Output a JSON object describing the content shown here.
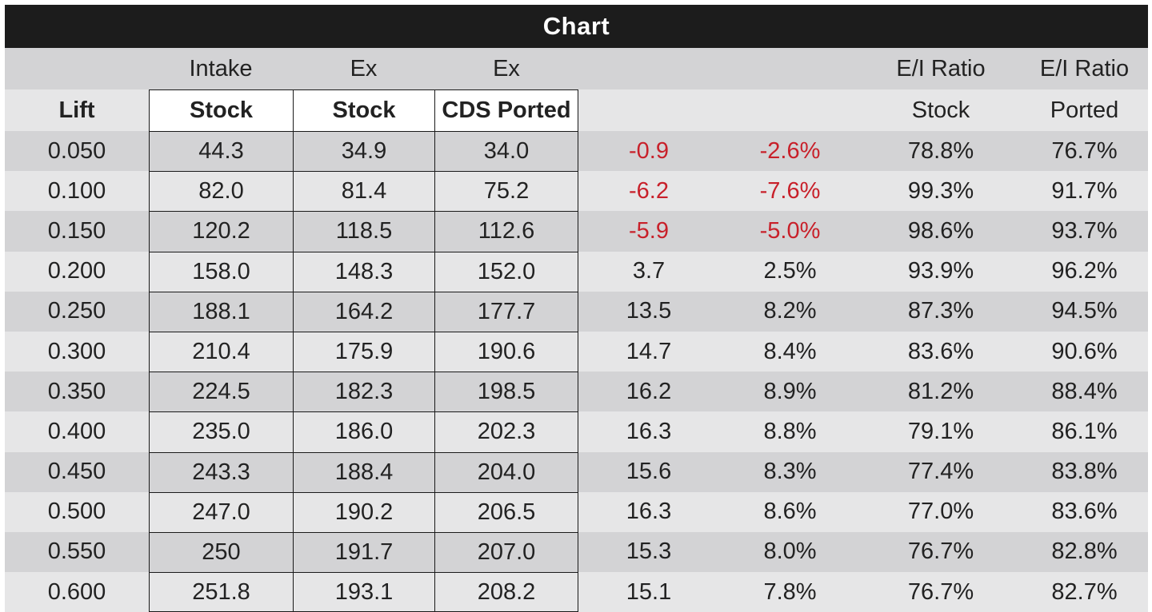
{
  "chart_data": {
    "type": "table",
    "title": "Chart",
    "header_row1": [
      "",
      "Intake",
      "Ex",
      "Ex",
      "",
      "",
      "E/I Ratio",
      "E/I Ratio"
    ],
    "header_row2": [
      "Lift",
      "Stock",
      "Stock",
      "CDS Ported",
      "",
      "",
      "Stock",
      "Ported"
    ],
    "rows": [
      [
        "0.050",
        "44.3",
        "34.9",
        "34.0",
        "-0.9",
        "-2.6%",
        "78.8%",
        "76.7%"
      ],
      [
        "0.100",
        "82.0",
        "81.4",
        "75.2",
        "-6.2",
        "-7.6%",
        "99.3%",
        "91.7%"
      ],
      [
        "0.150",
        "120.2",
        "118.5",
        "112.6",
        "-5.9",
        "-5.0%",
        "98.6%",
        "93.7%"
      ],
      [
        "0.200",
        "158.0",
        "148.3",
        "152.0",
        "3.7",
        "2.5%",
        "93.9%",
        "96.2%"
      ],
      [
        "0.250",
        "188.1",
        "164.2",
        "177.7",
        "13.5",
        "8.2%",
        "87.3%",
        "94.5%"
      ],
      [
        "0.300",
        "210.4",
        "175.9",
        "190.6",
        "14.7",
        "8.4%",
        "83.6%",
        "90.6%"
      ],
      [
        "0.350",
        "224.5",
        "182.3",
        "198.5",
        "16.2",
        "8.9%",
        "81.2%",
        "88.4%"
      ],
      [
        "0.400",
        "235.0",
        "186.0",
        "202.3",
        "16.3",
        "8.8%",
        "79.1%",
        "86.1%"
      ],
      [
        "0.450",
        "243.3",
        "188.4",
        "204.0",
        "15.6",
        "8.3%",
        "77.4%",
        "83.8%"
      ],
      [
        "0.500",
        "247.0",
        "190.2",
        "206.5",
        "16.3",
        "8.6%",
        "77.0%",
        "83.6%"
      ],
      [
        "0.550",
        "250",
        "191.7",
        "207.0",
        "15.3",
        "8.0%",
        "76.7%",
        "82.8%"
      ],
      [
        "0.600",
        "251.8",
        "193.1",
        "208.2",
        "15.1",
        "7.8%",
        "76.7%",
        "82.7%"
      ]
    ]
  },
  "colors": {
    "title_bg": "#1c1c1c",
    "row_shaded": "#d3d3d5",
    "row_light": "#e6e6e7",
    "negative": "#c8202a"
  }
}
